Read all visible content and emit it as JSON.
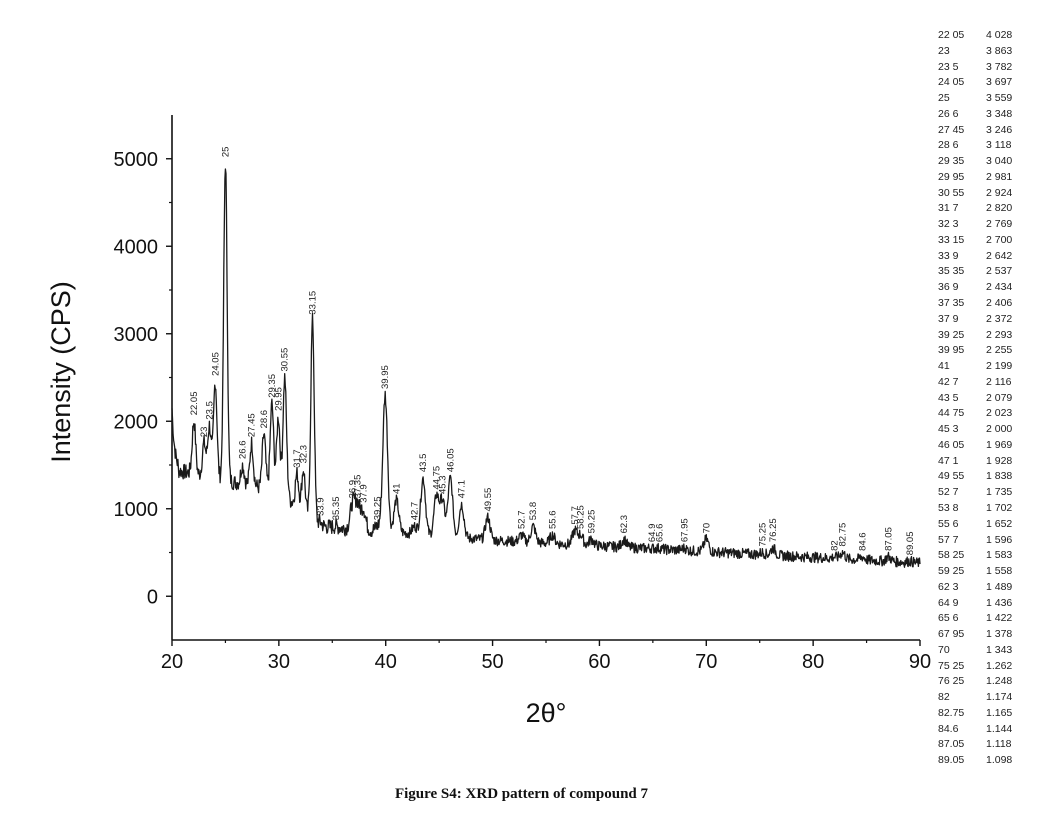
{
  "caption": "Figure S4: XRD pattern of compound 7",
  "chart_data": {
    "type": "line",
    "title": "",
    "xlabel": "2θ°",
    "ylabel": "Intensity (CPS)",
    "xlim": [
      20,
      90
    ],
    "ylim": [
      -500,
      5500
    ],
    "xticks": [
      20,
      30,
      40,
      50,
      60,
      70,
      80,
      90
    ],
    "yticks": [
      0,
      1000,
      2000,
      3000,
      4000,
      5000
    ],
    "grid": false,
    "legend": "none",
    "series": [
      {
        "color": "#1a1a1a",
        "peaks": [
          {
            "x": 22.05,
            "y": 2000,
            "label": "22.05"
          },
          {
            "x": 23,
            "y": 1750,
            "label": "23"
          },
          {
            "x": 23.5,
            "y": 1950,
            "label": "23.5"
          },
          {
            "x": 24.05,
            "y": 2450,
            "label": "24.05"
          },
          {
            "x": 25,
            "y": 4950,
            "label": "25"
          },
          {
            "x": 26.6,
            "y": 1500,
            "label": "26.6"
          },
          {
            "x": 27.45,
            "y": 1750,
            "label": "27.45"
          },
          {
            "x": 28.6,
            "y": 1850,
            "label": "28.6"
          },
          {
            "x": 29.35,
            "y": 2200,
            "label": "29.35"
          },
          {
            "x": 29.95,
            "y": 2050,
            "label": "29.95"
          },
          {
            "x": 30.55,
            "y": 2500,
            "label": "30.55"
          },
          {
            "x": 31.7,
            "y": 1400,
            "label": "31.7"
          },
          {
            "x": 32.3,
            "y": 1450,
            "label": "32.3"
          },
          {
            "x": 33.15,
            "y": 3150,
            "label": "33.15"
          },
          {
            "x": 33.9,
            "y": 850,
            "label": "33.9"
          },
          {
            "x": 35.35,
            "y": 800,
            "label": "35.35"
          },
          {
            "x": 36.9,
            "y": 1050,
            "label": "36.9"
          },
          {
            "x": 37.35,
            "y": 1050,
            "label": "37.35"
          },
          {
            "x": 37.9,
            "y": 1000,
            "label": "37.9"
          },
          {
            "x": 39.25,
            "y": 800,
            "label": "39.25"
          },
          {
            "x": 39.95,
            "y": 2300,
            "label": "39.95"
          },
          {
            "x": 41,
            "y": 1100,
            "label": "41"
          },
          {
            "x": 42.7,
            "y": 800,
            "label": "42.7"
          },
          {
            "x": 43.5,
            "y": 1350,
            "label": "43.5"
          },
          {
            "x": 44.75,
            "y": 1150,
            "label": "44.75"
          },
          {
            "x": 45.3,
            "y": 1100,
            "label": "45.3"
          },
          {
            "x": 46.05,
            "y": 1350,
            "label": "46.05"
          },
          {
            "x": 47.1,
            "y": 1050,
            "label": "47.1"
          },
          {
            "x": 49.55,
            "y": 900,
            "label": "49.55"
          },
          {
            "x": 52.7,
            "y": 700,
            "label": "52.7"
          },
          {
            "x": 53.8,
            "y": 800,
            "label": "53.8"
          },
          {
            "x": 55.6,
            "y": 700,
            "label": "55.6"
          },
          {
            "x": 57.7,
            "y": 750,
            "label": "57.7"
          },
          {
            "x": 58.25,
            "y": 700,
            "label": "58.25"
          },
          {
            "x": 59.25,
            "y": 650,
            "label": "59.25"
          },
          {
            "x": 62.3,
            "y": 650,
            "label": "62.3"
          },
          {
            "x": 64.9,
            "y": 550,
            "label": "64.9"
          },
          {
            "x": 65.6,
            "y": 550,
            "label": "65.6"
          },
          {
            "x": 67.95,
            "y": 550,
            "label": "67.95"
          },
          {
            "x": 70,
            "y": 650,
            "label": "70"
          },
          {
            "x": 75.25,
            "y": 500,
            "label": "75.25"
          },
          {
            "x": 76.25,
            "y": 550,
            "label": "76.25"
          },
          {
            "x": 82,
            "y": 450,
            "label": "82"
          },
          {
            "x": 82.75,
            "y": 500,
            "label": "82.75"
          },
          {
            "x": 84.6,
            "y": 450,
            "label": "84.6"
          },
          {
            "x": 87.05,
            "y": 450,
            "label": "87.05"
          },
          {
            "x": 89.05,
            "y": 400,
            "label": "89.05"
          }
        ]
      }
    ]
  },
  "d_table": [
    {
      "theta": "22 05",
      "d": "4 028"
    },
    {
      "theta": "23",
      "d": "3 863"
    },
    {
      "theta": "23 5",
      "d": "3 782"
    },
    {
      "theta": "24 05",
      "d": "3 697"
    },
    {
      "theta": "25",
      "d": "3 559"
    },
    {
      "theta": "26 6",
      "d": "3 348"
    },
    {
      "theta": "27 45",
      "d": "3 246"
    },
    {
      "theta": "28 6",
      "d": "3 118"
    },
    {
      "theta": "29 35",
      "d": "3 040"
    },
    {
      "theta": "29 95",
      "d": "2 981"
    },
    {
      "theta": "30 55",
      "d": "2 924"
    },
    {
      "theta": "31 7",
      "d": "2 820"
    },
    {
      "theta": "32 3",
      "d": "2 769"
    },
    {
      "theta": "33 15",
      "d": "2 700"
    },
    {
      "theta": "33 9",
      "d": "2 642"
    },
    {
      "theta": "35 35",
      "d": "2 537"
    },
    {
      "theta": "36 9",
      "d": "2 434"
    },
    {
      "theta": "37 35",
      "d": "2 406"
    },
    {
      "theta": "37 9",
      "d": "2 372"
    },
    {
      "theta": "39 25",
      "d": "2 293"
    },
    {
      "theta": "39 95",
      "d": "2 255"
    },
    {
      "theta": "41",
      "d": "2 199"
    },
    {
      "theta": "42 7",
      "d": "2 116"
    },
    {
      "theta": "43 5",
      "d": "2 079"
    },
    {
      "theta": "44 75",
      "d": "2 023"
    },
    {
      "theta": "45 3",
      "d": "2 000"
    },
    {
      "theta": "46 05",
      "d": "1 969"
    },
    {
      "theta": "47 1",
      "d": "1 928"
    },
    {
      "theta": "49 55",
      "d": "1 838"
    },
    {
      "theta": "52 7",
      "d": "1 735"
    },
    {
      "theta": "53 8",
      "d": "1 702"
    },
    {
      "theta": "55 6",
      "d": "1 652"
    },
    {
      "theta": "57 7",
      "d": "1 596"
    },
    {
      "theta": "58 25",
      "d": "1 583"
    },
    {
      "theta": "59 25",
      "d": "1 558"
    },
    {
      "theta": "62 3",
      "d": "1 489"
    },
    {
      "theta": "64 9",
      "d": "1 436"
    },
    {
      "theta": "65 6",
      "d": "1 422"
    },
    {
      "theta": "67 95",
      "d": "1 378"
    },
    {
      "theta": "70",
      "d": "1 343"
    },
    {
      "theta": "75 25",
      "d": "1.262"
    },
    {
      "theta": "76 25",
      "d": "1.248"
    },
    {
      "theta": "82",
      "d": "1.174"
    },
    {
      "theta": "82.75",
      "d": "1.165"
    },
    {
      "theta": "84.6",
      "d": "1.144"
    },
    {
      "theta": "87.05",
      "d": "1.118"
    },
    {
      "theta": "89.05",
      "d": "1.098"
    }
  ]
}
